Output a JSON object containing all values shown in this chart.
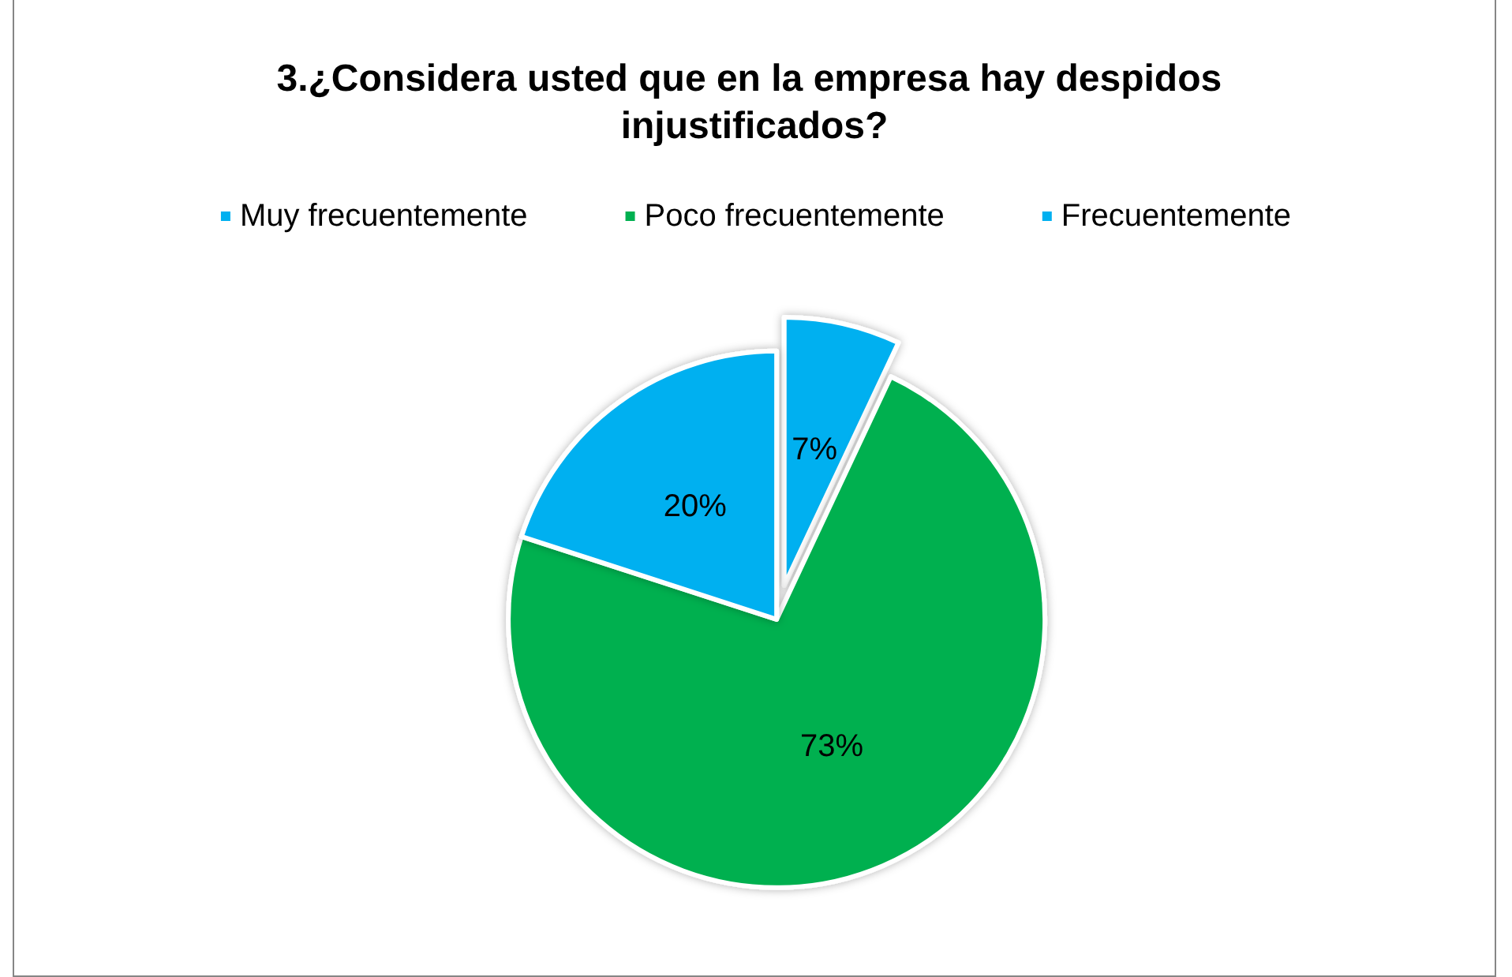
{
  "chart_data": {
    "type": "pie",
    "title": "3.¿Considera usted que en la empresa hay despidos injustificados?",
    "categories": [
      "Muy frecuentemente",
      "Poco frecuentemente",
      "Frecuentemente"
    ],
    "values": [
      7,
      73,
      20
    ],
    "colors": [
      "#00b0f0",
      "#00b050",
      "#00b0f0"
    ],
    "value_labels": [
      "7%",
      "73%",
      "20%"
    ],
    "legend": "top"
  }
}
